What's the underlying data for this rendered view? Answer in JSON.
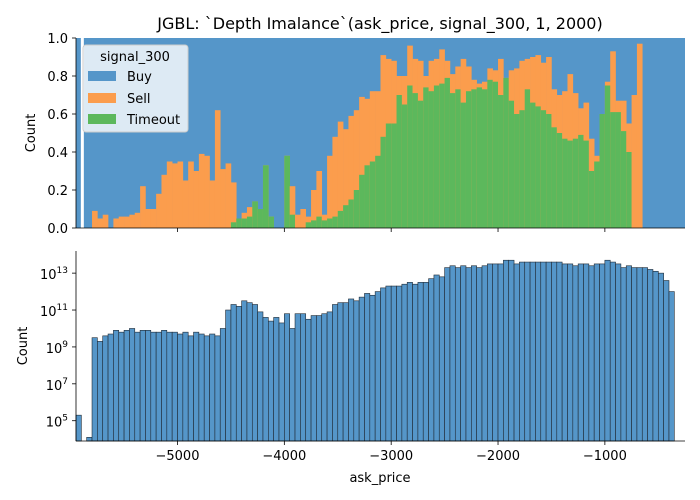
{
  "chart_data": [
    {
      "type": "bar",
      "subtype": "stacked-normalized-histogram",
      "title": "JGBL: `Depth Imalance`(ask_price, signal_300, 1, 2000)",
      "xlabel": "",
      "ylabel": "Count",
      "xlim": [
        -5950,
        -250
      ],
      "ylim": [
        0,
        1
      ],
      "yticks": [
        0.0,
        0.2,
        0.4,
        0.6,
        0.8,
        1.0
      ],
      "ytick_labels": [
        "0.0",
        "0.2",
        "0.4",
        "0.6",
        "0.8",
        "1.0"
      ],
      "bin_width": 50,
      "legend": {
        "title": "signal_300",
        "placement": "top-left",
        "entries": [
          {
            "label": "Buy",
            "color": "#5596c9"
          },
          {
            "label": "Sell",
            "color": "#fb9d4d"
          },
          {
            "label": "Timeout",
            "color": "#5cb85c"
          }
        ]
      },
      "bins_start": [
        -5950,
        -5900,
        -5850,
        -5800,
        -5750,
        -5700,
        -5650,
        -5600,
        -5550,
        -5500,
        -5450,
        -5400,
        -5350,
        -5300,
        -5250,
        -5200,
        -5150,
        -5100,
        -5050,
        -5000,
        -4950,
        -4900,
        -4850,
        -4800,
        -4750,
        -4700,
        -4650,
        -4600,
        -4550,
        -4500,
        -4450,
        -4400,
        -4350,
        -4300,
        -4250,
        -4200,
        -4150,
        -4100,
        -4050,
        -4000,
        -3950,
        -3900,
        -3850,
        -3800,
        -3750,
        -3700,
        -3650,
        -3600,
        -3550,
        -3500,
        -3450,
        -3400,
        -3350,
        -3300,
        -3250,
        -3200,
        -3150,
        -3100,
        -3050,
        -3000,
        -2950,
        -2900,
        -2850,
        -2800,
        -2750,
        -2700,
        -2650,
        -2600,
        -2550,
        -2500,
        -2450,
        -2400,
        -2350,
        -2300,
        -2250,
        -2200,
        -2150,
        -2100,
        -2050,
        -2000,
        -1950,
        -1900,
        -1850,
        -1800,
        -1750,
        -1700,
        -1650,
        -1600,
        -1550,
        -1500,
        -1450,
        -1400,
        -1350,
        -1300,
        -1250,
        -1200,
        -1150,
        -1100,
        -1050,
        -1000,
        -950,
        -900,
        -850,
        -800,
        -750,
        -700,
        -650,
        -600,
        -550,
        -500,
        -450,
        -400,
        -350,
        -300
      ],
      "sell_top": [
        0.0,
        0.0,
        0.0,
        0.09,
        0.05,
        0.07,
        0.0,
        0.05,
        0.06,
        0.06,
        0.07,
        0.08,
        0.22,
        0.1,
        0.1,
        0.18,
        0.28,
        0.35,
        0.34,
        0.35,
        0.25,
        0.35,
        0.3,
        0.39,
        0.38,
        0.25,
        0.62,
        0.31,
        0.34,
        0.24,
        0.05,
        0.08,
        0.11,
        0.14,
        0.1,
        0.33,
        0.06,
        0.0,
        0.0,
        0.38,
        0.22,
        0.07,
        0.1,
        0.06,
        0.2,
        0.3,
        0.07,
        0.38,
        0.48,
        0.56,
        0.52,
        0.59,
        0.62,
        0.69,
        0.68,
        0.72,
        0.72,
        0.91,
        0.89,
        0.88,
        0.8,
        0.8,
        0.96,
        0.89,
        0.88,
        0.8,
        0.88,
        0.89,
        0.94,
        0.88,
        0.81,
        0.85,
        0.89,
        0.85,
        0.78,
        0.76,
        0.77,
        0.84,
        0.83,
        0.89,
        0.79,
        0.83,
        0.84,
        0.88,
        0.89,
        0.9,
        0.91,
        0.87,
        0.9,
        0.73,
        0.7,
        0.72,
        0.81,
        0.71,
        0.63,
        0.66,
        0.47,
        0.38,
        0.44,
        0.77,
        0.93,
        0.67,
        0.67,
        0.55,
        0.7,
        0.97,
        0.0,
        0.0,
        0.0,
        0.0,
        0.0,
        0.0,
        0.0,
        0.0
      ],
      "timeout_top": [
        0.0,
        0.0,
        0.0,
        0.0,
        0.0,
        0.0,
        0.0,
        0.0,
        0.0,
        0.0,
        0.0,
        0.0,
        0.0,
        0.0,
        0.0,
        0.0,
        0.0,
        0.0,
        0.0,
        0.0,
        0.0,
        0.0,
        0.0,
        0.0,
        0.0,
        0.0,
        0.0,
        0.0,
        0.0,
        0.03,
        0.05,
        0.05,
        0.06,
        0.14,
        0.1,
        0.33,
        0.06,
        0.0,
        0.0,
        0.38,
        0.07,
        0.0,
        0.0,
        0.03,
        0.04,
        0.06,
        0.04,
        0.05,
        0.06,
        0.09,
        0.12,
        0.15,
        0.2,
        0.28,
        0.33,
        0.35,
        0.38,
        0.48,
        0.55,
        0.55,
        0.7,
        0.65,
        0.75,
        0.71,
        0.67,
        0.74,
        0.72,
        0.75,
        0.76,
        0.79,
        0.71,
        0.73,
        0.66,
        0.72,
        0.73,
        0.74,
        0.73,
        0.78,
        0.77,
        0.7,
        0.79,
        0.67,
        0.6,
        0.62,
        0.73,
        0.66,
        0.64,
        0.62,
        0.6,
        0.53,
        0.5,
        0.47,
        0.46,
        0.47,
        0.49,
        0.46,
        0.3,
        0.35,
        0.6,
        0.75,
        0.61,
        0.61,
        0.51,
        0.4,
        0.0,
        0.0,
        0.0,
        0.0,
        0.0,
        0.0,
        0.0,
        0.0,
        0.0,
        0.0
      ]
    },
    {
      "type": "bar",
      "subtype": "histogram",
      "title": "",
      "xlabel": "ask_price",
      "ylabel": "Count",
      "yscale": "log",
      "xlim": [
        -5950,
        -250
      ],
      "ylim_log10": [
        3.9,
        14.2
      ],
      "xticks": [
        -5000,
        -4000,
        -3000,
        -2000,
        -1000
      ],
      "xtick_labels": [
        "−5000",
        "−4000",
        "−3000",
        "−2000",
        "−1000"
      ],
      "ytick_exponents": [
        5,
        7,
        9,
        11,
        13
      ],
      "ytick_labels": [
        "10",
        "10",
        "10",
        "10",
        "10"
      ],
      "ytick_label_exponents": [
        "5",
        "7",
        "9",
        "11",
        "13"
      ],
      "bar_color": "#5596c9",
      "bin_width": 50,
      "bins_start": [
        -5950,
        -5900,
        -5850,
        -5800,
        -5750,
        -5700,
        -5650,
        -5600,
        -5550,
        -5500,
        -5450,
        -5400,
        -5350,
        -5300,
        -5250,
        -5200,
        -5150,
        -5100,
        -5050,
        -5000,
        -4950,
        -4900,
        -4850,
        -4800,
        -4750,
        -4700,
        -4650,
        -4600,
        -4550,
        -4500,
        -4450,
        -4400,
        -4350,
        -4300,
        -4250,
        -4200,
        -4150,
        -4100,
        -4050,
        -4000,
        -3950,
        -3900,
        -3850,
        -3800,
        -3750,
        -3700,
        -3650,
        -3600,
        -3550,
        -3500,
        -3450,
        -3400,
        -3350,
        -3300,
        -3250,
        -3200,
        -3150,
        -3100,
        -3050,
        -3000,
        -2950,
        -2900,
        -2850,
        -2800,
        -2750,
        -2700,
        -2650,
        -2600,
        -2550,
        -2500,
        -2450,
        -2400,
        -2350,
        -2300,
        -2250,
        -2200,
        -2150,
        -2100,
        -2050,
        -2000,
        -1950,
        -1900,
        -1850,
        -1800,
        -1750,
        -1700,
        -1650,
        -1600,
        -1550,
        -1500,
        -1450,
        -1400,
        -1350,
        -1300,
        -1250,
        -1200,
        -1150,
        -1100,
        -1050,
        -1000,
        -950,
        -900,
        -850,
        -800,
        -750,
        -700,
        -650,
        -600,
        -550,
        -500,
        -450,
        -400,
        -350,
        -300
      ],
      "log10_counts": [
        5.3,
        0.0,
        4.1,
        9.5,
        9.3,
        9.6,
        9.7,
        9.9,
        9.8,
        9.9,
        10.0,
        9.8,
        9.9,
        9.9,
        9.8,
        9.8,
        9.9,
        9.8,
        9.8,
        9.7,
        9.8,
        9.6,
        9.8,
        9.7,
        9.6,
        9.7,
        9.6,
        10.0,
        11.0,
        11.3,
        11.2,
        11.5,
        11.4,
        11.3,
        10.9,
        10.6,
        10.4,
        10.6,
        10.3,
        10.8,
        10.0,
        10.8,
        10.8,
        10.5,
        10.7,
        10.7,
        10.8,
        10.9,
        11.3,
        11.4,
        11.4,
        11.6,
        11.5,
        11.7,
        11.9,
        11.8,
        12.0,
        12.2,
        12.3,
        12.3,
        12.3,
        12.4,
        12.5,
        12.4,
        12.5,
        12.5,
        12.7,
        12.9,
        12.8,
        13.3,
        13.4,
        13.3,
        13.4,
        13.3,
        13.4,
        13.3,
        13.4,
        13.5,
        13.5,
        13.5,
        13.7,
        13.7,
        13.5,
        13.6,
        13.6,
        13.6,
        13.6,
        13.6,
        13.6,
        13.6,
        13.6,
        13.5,
        13.5,
        13.4,
        13.5,
        13.5,
        13.4,
        13.5,
        13.5,
        13.7,
        13.6,
        13.5,
        13.3,
        13.4,
        13.3,
        13.3,
        13.3,
        13.2,
        13.1,
        13.0,
        12.6,
        12.0,
        0.0,
        0.0
      ]
    }
  ]
}
